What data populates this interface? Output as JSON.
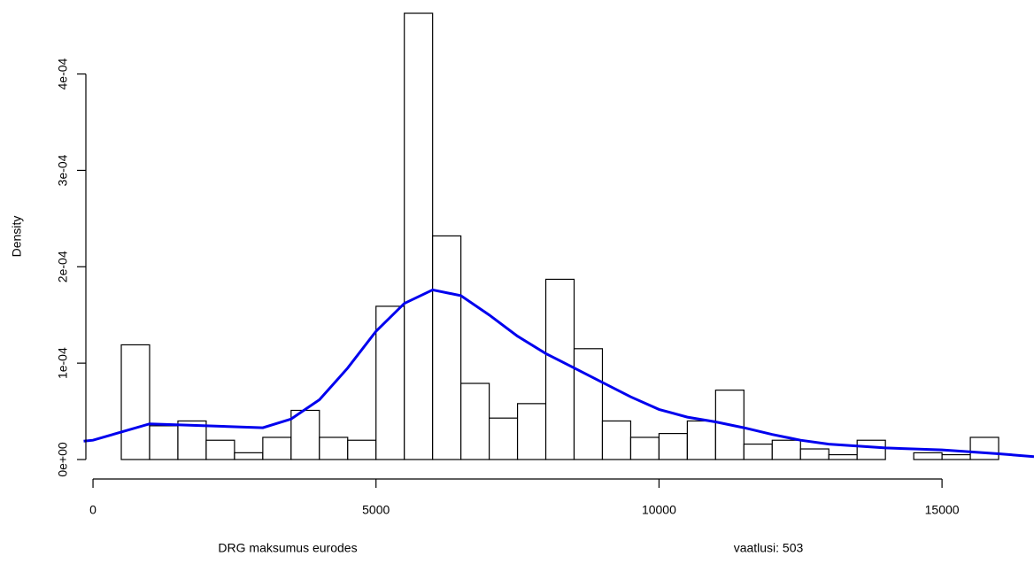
{
  "chart_data": {
    "type": "histogram",
    "x_label": "DRG maksumus eurodes",
    "y_label": "Density",
    "annotation": "vaatlusi: 503",
    "bins": [
      500,
      1000,
      1500,
      2000,
      2500,
      3000,
      3500,
      4000,
      4500,
      5000,
      5500,
      6000,
      6500,
      7000,
      7500,
      8000,
      8500,
      9000,
      9500,
      10000,
      10500,
      11000,
      11500,
      12000,
      12500,
      13000,
      13500,
      14000,
      14500,
      15000,
      15500,
      16000
    ],
    "values": [
      0.000119,
      3.5e-05,
      4e-05,
      2e-05,
      7e-06,
      2.3e-05,
      5.1e-05,
      2.3e-05,
      2e-05,
      0.000159,
      0.000463,
      0.000232,
      7.9e-05,
      4.3e-05,
      5.8e-05,
      0.000187,
      0.000115,
      4e-05,
      2.3e-05,
      2.7e-05,
      4e-05,
      7.2e-05,
      1.6e-05,
      2e-05,
      1.1e-05,
      5e-06,
      2e-05,
      0,
      7e-06,
      5e-06,
      2.3e-05
    ],
    "bar_color": "#ffffff",
    "density": {
      "color": "#0000ee",
      "x": [
        -165,
        0,
        1000,
        2000,
        3000,
        3500,
        4000,
        4500,
        5000,
        5500,
        6000,
        6500,
        7000,
        7500,
        8000,
        8500,
        9000,
        9500,
        10000,
        10500,
        11000,
        11500,
        12000,
        12500,
        13000,
        14000,
        15000,
        16000,
        16625
      ],
      "values": [
        1.9e-05,
        2e-05,
        3.7e-05,
        3.5e-05,
        3.3e-05,
        4.2e-05,
        6.2e-05,
        9.5e-05,
        0.000133,
        0.000162,
        0.000176,
        0.00017,
        0.00015,
        0.000128,
        0.00011,
        9.5e-05,
        8e-05,
        6.5e-05,
        5.2e-05,
        4.4e-05,
        3.9e-05,
        3.3e-05,
        2.6e-05,
        2e-05,
        1.6e-05,
        1.2e-05,
        1e-05,
        6e-06,
        3e-06
      ]
    },
    "xlim": [
      -165,
      16625
    ],
    "ylim": [
      0,
      0.000463
    ],
    "xticks": [
      0,
      5000,
      10000,
      15000
    ],
    "yticks": [
      {
        "value": 0,
        "label": "0e+00"
      },
      {
        "value": 0.0001,
        "label": "1e-04"
      },
      {
        "value": 0.0002,
        "label": "2e-04"
      },
      {
        "value": 0.0003,
        "label": "3e-04"
      },
      {
        "value": 0.0004,
        "label": "4e-04"
      }
    ]
  }
}
